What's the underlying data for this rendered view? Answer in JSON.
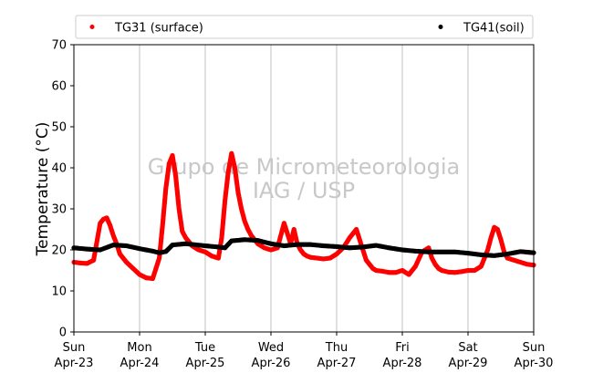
{
  "chart_data": {
    "type": "scatter",
    "title": "",
    "xlabel": "",
    "ylabel": "Temperature (°C)",
    "ylim": [
      0,
      70
    ],
    "yticks": [
      0,
      10,
      20,
      30,
      40,
      50,
      60,
      70
    ],
    "xlim": [
      0,
      7
    ],
    "xticks": [
      {
        "day": "Sun",
        "date": "Apr-23"
      },
      {
        "day": "Mon",
        "date": "Apr-24"
      },
      {
        "day": "Tue",
        "date": "Apr-25"
      },
      {
        "day": "Wed",
        "date": "Apr-26"
      },
      {
        "day": "Thu",
        "date": "Apr-27"
      },
      {
        "day": "Fri",
        "date": "Apr-28"
      },
      {
        "day": "Sat",
        "date": "Apr-29"
      },
      {
        "day": "Sun",
        "date": "Apr-30"
      }
    ],
    "grid": "vertical",
    "legend_position": "top",
    "watermark": [
      "Grupo de Micrometeorologia",
      "IAG / USP"
    ],
    "series": [
      {
        "name": "TG31 (surface)",
        "color": "#ff0000",
        "x": [
          0,
          0.1,
          0.2,
          0.3,
          0.35,
          0.4,
          0.45,
          0.5,
          0.55,
          0.6,
          0.65,
          0.7,
          0.8,
          0.9,
          1.0,
          1.1,
          1.2,
          1.3,
          1.35,
          1.4,
          1.45,
          1.5,
          1.55,
          1.6,
          1.65,
          1.7,
          1.75,
          1.8,
          1.9,
          2.0,
          2.1,
          2.2,
          2.25,
          2.3,
          2.35,
          2.4,
          2.45,
          2.5,
          2.55,
          2.6,
          2.65,
          2.7,
          2.8,
          2.9,
          3.0,
          3.1,
          3.2,
          3.3,
          3.35,
          3.4,
          3.45,
          3.5,
          3.55,
          3.6,
          3.7,
          3.8,
          3.9,
          4.0,
          4.1,
          4.2,
          4.3,
          4.4,
          4.45,
          4.5,
          4.55,
          4.6,
          4.7,
          4.8,
          4.9,
          5.0,
          5.1,
          5.2,
          5.3,
          5.4,
          5.45,
          5.5,
          5.55,
          5.6,
          5.7,
          5.8,
          5.9,
          6.0,
          6.1,
          6.2,
          6.3,
          6.35,
          6.4,
          6.45,
          6.5,
          6.55,
          6.6,
          6.7,
          6.8,
          6.9,
          7.0
        ],
        "y": [
          17,
          16.8,
          16.7,
          17.5,
          22,
          26.5,
          27.5,
          27.8,
          26,
          23.5,
          21.5,
          19,
          17,
          15.5,
          14,
          13.2,
          13,
          18,
          26,
          35,
          41,
          43,
          38,
          30,
          24.5,
          23,
          22,
          21,
          20,
          19.5,
          18.5,
          18,
          23,
          32,
          39,
          43.5,
          40,
          34,
          30,
          27,
          25,
          23.5,
          21.5,
          20.5,
          20,
          20.5,
          26.5,
          21.5,
          25,
          21.5,
          20,
          19,
          18.5,
          18.2,
          18,
          17.8,
          18,
          19,
          20.5,
          23,
          25,
          20,
          17.5,
          16.5,
          15.5,
          15,
          14.8,
          14.5,
          14.5,
          15,
          14,
          16,
          19.5,
          20.5,
          18,
          16.5,
          15.5,
          15,
          14.6,
          14.5,
          14.7,
          15,
          15,
          16,
          20,
          23,
          25.5,
          25,
          22.5,
          19.5,
          18,
          17.5,
          17,
          16.5,
          16.3
        ]
      },
      {
        "name": "TG41(soil)",
        "color": "#000000",
        "x": [
          0,
          0.2,
          0.4,
          0.5,
          0.6,
          0.8,
          1.0,
          1.2,
          1.3,
          1.4,
          1.5,
          1.7,
          2.0,
          2.2,
          2.3,
          2.4,
          2.6,
          2.8,
          3.0,
          3.2,
          3.4,
          3.6,
          3.8,
          4.0,
          4.2,
          4.4,
          4.6,
          4.8,
          5.0,
          5.2,
          5.4,
          5.6,
          5.8,
          6.0,
          6.2,
          6.4,
          6.6,
          6.8,
          7.0
        ],
        "y": [
          20.5,
          20.2,
          20.0,
          20.6,
          21.2,
          21.0,
          20.3,
          19.7,
          19.3,
          19.6,
          21.2,
          21.5,
          21.0,
          20.7,
          20.5,
          22.2,
          22.5,
          22.3,
          21.5,
          21.0,
          21.3,
          21.3,
          21.0,
          20.8,
          20.5,
          20.7,
          21.1,
          20.5,
          20.0,
          19.7,
          19.5,
          19.5,
          19.5,
          19.2,
          18.8,
          18.6,
          19.0,
          19.6,
          19.3
        ]
      }
    ]
  }
}
